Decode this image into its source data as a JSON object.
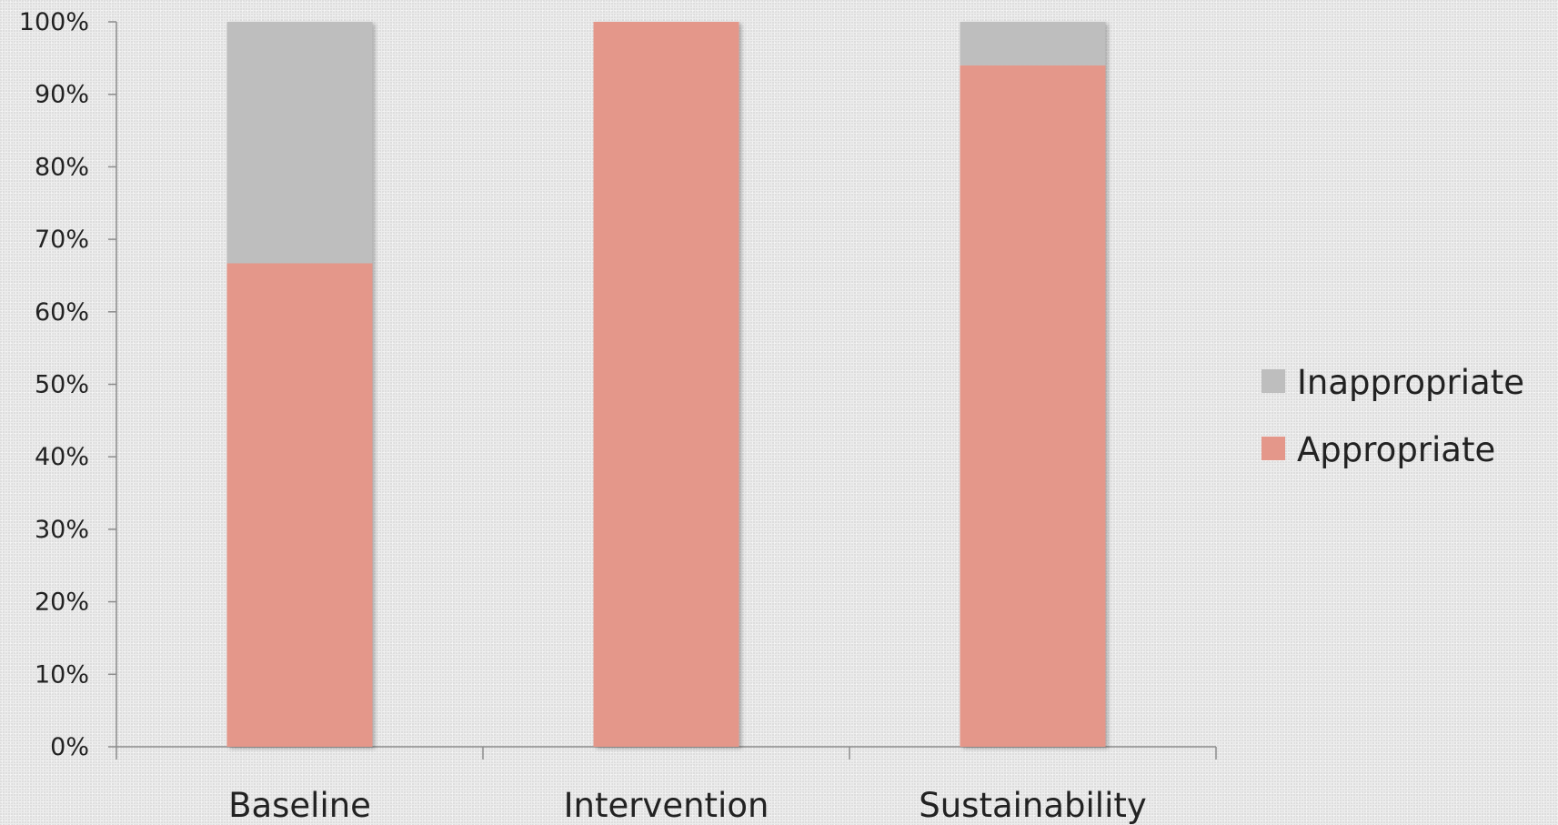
{
  "chart_data": {
    "type": "bar",
    "stacked": true,
    "normalized": true,
    "categories": [
      "Baseline",
      "Intervention",
      "Sustainability"
    ],
    "series": [
      {
        "name": "Appropriate",
        "values": [
          66.7,
          100,
          94
        ],
        "color": "#e4978a"
      },
      {
        "name": "Inappropriate",
        "values": [
          33.3,
          0,
          6
        ],
        "color": "#bebebe"
      }
    ],
    "ylim": [
      0,
      100
    ],
    "yticks": [
      "0%",
      "10%",
      "20%",
      "30%",
      "40%",
      "50%",
      "60%",
      "70%",
      "80%",
      "90%",
      "100%"
    ],
    "title": "",
    "xlabel": "",
    "ylabel": "",
    "grid": false,
    "legend": {
      "placement": "right",
      "entries": [
        "Inappropriate",
        "Appropriate"
      ]
    }
  }
}
